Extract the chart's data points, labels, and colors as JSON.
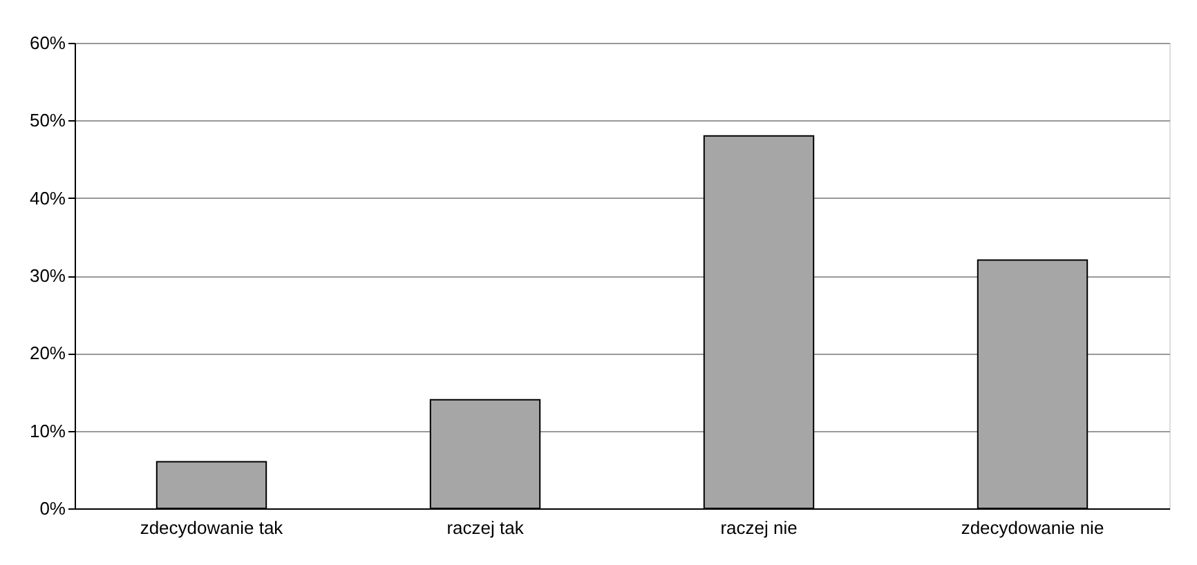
{
  "chart_data": {
    "type": "bar",
    "categories": [
      "zdecydowanie tak",
      "raczej tak",
      "raczej nie",
      "zdecydowanie nie"
    ],
    "values": [
      6,
      14,
      48,
      32
    ],
    "color": "#a6a6a6",
    "ylim": [
      0,
      60
    ],
    "yticks": [
      {
        "value": 0,
        "label": "0%"
      },
      {
        "value": 10,
        "label": "10%"
      },
      {
        "value": 20,
        "label": "20%"
      },
      {
        "value": 30,
        "label": "30%"
      },
      {
        "value": 40,
        "label": "40%"
      },
      {
        "value": 50,
        "label": "50%"
      },
      {
        "value": 60,
        "label": "60%"
      }
    ],
    "grid": "y"
  }
}
